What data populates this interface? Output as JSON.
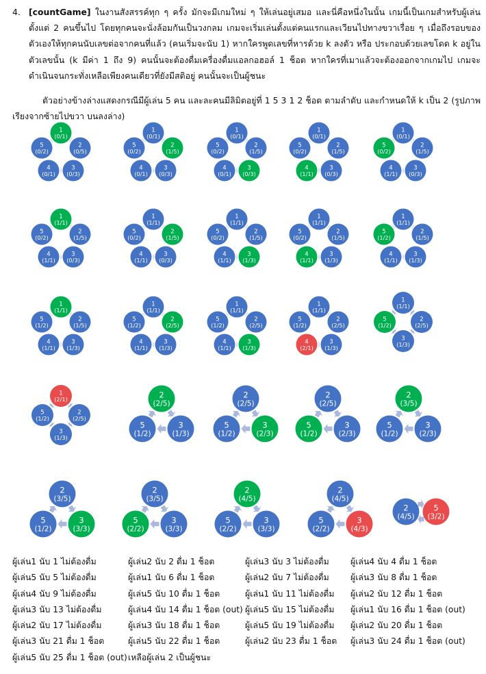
{
  "problem": {
    "number": "4.",
    "keyword": "[countGame]",
    "text": " ในงานสังสรรค์ทุก ๆ ครั้ง มักจะมีเกมใหม่ ๆ ให้เล่นอยู่เสมอ และนี่คือหนึ่งในนั้น เกมนี้เป็นเกมสำหรับผู้เล่นตั้งแต่ 2 คนขึ้นไป โดยทุกคนจะนั่งล้อมกันเป็นวงกลม เกมจะเริ่มเล่นตั้งแต่คนแรกและเวียนไปทางขวาเรื่อย ๆ เมื่อถึงรอบของตัวเองให้ทุกคนนับเลขต่อจากคนที่แล้ว (คนเริ่มจะนับ 1) หากใครพูดเลขที่หารด้วย k ลงตัว หรือ ประกอบด้วยเลขโดด k อยู่ในตัวเลขนั้น (k มีค่า 1 ถึง 9) คนนั้นจะต้องดื่มเครื่องดื่มแอลกอฮอล์ 1 ช็อต หากใครที่เมาแล้วจะต้องออกจากเกมไป เกมจะดำเนินจนกระทั่งเหลือเพียงคนเดียวที่ยังมีสติอยู่ คนนั้นจะเป็นผู้ชนะ",
    "example": "ตัวอย่างข้างล่างแสดงกรณีมีผู้เล่น 5 คน และละคนมีลิมิตอยู่ที่ 1 5 3 1 2 ช็อต ตามลำดับ และกำหนดให้ k เป็น 2 (รูปภาพเรียงจากซ้ายไปขวา บนลงล่าง)"
  },
  "colors": {
    "normal": "#4472c4",
    "active": "#00b050",
    "out": "#e84c4c",
    "arrow": "#aab8de"
  },
  "diagrams": [
    {
      "players": [
        [
          "1",
          "(0/1)",
          "g"
        ],
        [
          "2",
          "(0/5)",
          "b"
        ],
        [
          "3",
          "(0/3)",
          "b"
        ],
        [
          "4",
          "(0/1)",
          "b"
        ],
        [
          "5",
          "(0/2)",
          "b"
        ]
      ]
    },
    {
      "players": [
        [
          "1",
          "(0/1)",
          "b"
        ],
        [
          "2",
          "(1/5)",
          "g"
        ],
        [
          "3",
          "(0/3)",
          "b"
        ],
        [
          "4",
          "(0/1)",
          "b"
        ],
        [
          "5",
          "(0/2)",
          "b"
        ]
      ]
    },
    {
      "players": [
        [
          "1",
          "(0/1)",
          "b"
        ],
        [
          "2",
          "(1/5)",
          "b"
        ],
        [
          "3",
          "(0/3)",
          "g"
        ],
        [
          "4",
          "(0/1)",
          "b"
        ],
        [
          "5",
          "(0/2)",
          "b"
        ]
      ]
    },
    {
      "players": [
        [
          "1",
          "(0/1)",
          "b"
        ],
        [
          "2",
          "(1/5)",
          "b"
        ],
        [
          "3",
          "(0/3)",
          "b"
        ],
        [
          "4",
          "(1/1)",
          "g"
        ],
        [
          "5",
          "(0/2)",
          "b"
        ]
      ]
    },
    {
      "players": [
        [
          "1",
          "(0/1)",
          "b"
        ],
        [
          "2",
          "(1/5)",
          "b"
        ],
        [
          "3",
          "(0/3)",
          "b"
        ],
        [
          "4",
          "(1/1)",
          "b"
        ],
        [
          "5",
          "(0/2)",
          "g"
        ]
      ]
    },
    {
      "players": [
        [
          "1",
          "(1/1)",
          "g"
        ],
        [
          "2",
          "(1/5)",
          "b"
        ],
        [
          "3",
          "(0/3)",
          "b"
        ],
        [
          "4",
          "(1/1)",
          "b"
        ],
        [
          "5",
          "(0/2)",
          "b"
        ]
      ]
    },
    {
      "players": [
        [
          "1",
          "(1/1)",
          "b"
        ],
        [
          "2",
          "(1/5)",
          "g"
        ],
        [
          "3",
          "(0/3)",
          "b"
        ],
        [
          "4",
          "(1/1)",
          "b"
        ],
        [
          "5",
          "(0/2)",
          "b"
        ]
      ]
    },
    {
      "players": [
        [
          "1",
          "(1/1)",
          "b"
        ],
        [
          "2",
          "(1/5)",
          "b"
        ],
        [
          "3",
          "(1/3)",
          "g"
        ],
        [
          "4",
          "(1/1)",
          "b"
        ],
        [
          "5",
          "(0/2)",
          "b"
        ]
      ]
    },
    {
      "players": [
        [
          "1",
          "(1/1)",
          "b"
        ],
        [
          "2",
          "(1/5)",
          "b"
        ],
        [
          "3",
          "(1/3)",
          "b"
        ],
        [
          "4",
          "(1/1)",
          "g"
        ],
        [
          "5",
          "(0/2)",
          "b"
        ]
      ]
    },
    {
      "players": [
        [
          "1",
          "(1/1)",
          "b"
        ],
        [
          "2",
          "(1/5)",
          "b"
        ],
        [
          "3",
          "(1/3)",
          "b"
        ],
        [
          "4",
          "(1/1)",
          "b"
        ],
        [
          "5",
          "(1/2)",
          "g"
        ]
      ]
    },
    {
      "players": [
        [
          "1",
          "(1/1)",
          "g"
        ],
        [
          "2",
          "(1/5)",
          "b"
        ],
        [
          "3",
          "(1/3)",
          "b"
        ],
        [
          "4",
          "(1/1)",
          "b"
        ],
        [
          "5",
          "(1/2)",
          "b"
        ]
      ]
    },
    {
      "players": [
        [
          "1",
          "(1/1)",
          "b"
        ],
        [
          "2",
          "(2/5)",
          "g"
        ],
        [
          "3",
          "(1/3)",
          "b"
        ],
        [
          "4",
          "(1/1)",
          "b"
        ],
        [
          "5",
          "(1/2)",
          "b"
        ]
      ]
    },
    {
      "players": [
        [
          "1",
          "(1/1)",
          "b"
        ],
        [
          "2",
          "(2/5)",
          "b"
        ],
        [
          "3",
          "(1/3)",
          "g"
        ],
        [
          "4",
          "(1/1)",
          "b"
        ],
        [
          "5",
          "(1/2)",
          "b"
        ]
      ]
    },
    {
      "players": [
        [
          "1",
          "(1/1)",
          "b"
        ],
        [
          "2",
          "(2/5)",
          "b"
        ],
        [
          "3",
          "(1/3)",
          "b"
        ],
        [
          "4",
          "(2/1)",
          "r"
        ],
        [
          "5",
          "(1/2)",
          "b"
        ]
      ]
    },
    {
      "players": [
        [
          "1",
          "(1/1)",
          "b"
        ],
        [
          "2",
          "(2/5)",
          "b"
        ],
        [
          "3",
          "(1/3)",
          "b"
        ],
        [
          "5",
          "(1/2)",
          "g"
        ]
      ]
    },
    {
      "players": [
        [
          "1",
          "(2/1)",
          "r"
        ],
        [
          "2",
          "(2/5)",
          "b"
        ],
        [
          "3",
          "(1/3)",
          "b"
        ],
        [
          "5",
          "(1/2)",
          "b"
        ]
      ]
    },
    {
      "players": [
        [
          "2",
          "(2/5)",
          "g"
        ],
        [
          "3",
          "(1/3)",
          "b"
        ],
        [
          "5",
          "(1/2)",
          "b"
        ]
      ]
    },
    {
      "players": [
        [
          "2",
          "(2/5)",
          "b"
        ],
        [
          "3",
          "(2/3)",
          "g"
        ],
        [
          "5",
          "(1/2)",
          "b"
        ]
      ]
    },
    {
      "players": [
        [
          "2",
          "(2/5)",
          "b"
        ],
        [
          "3",
          "(2/3)",
          "b"
        ],
        [
          "5",
          "(1/2)",
          "g"
        ]
      ]
    },
    {
      "players": [
        [
          "2",
          "(3/5)",
          "g"
        ],
        [
          "3",
          "(2/3)",
          "b"
        ],
        [
          "5",
          "(1/2)",
          "b"
        ]
      ]
    },
    {
      "players": [
        [
          "2",
          "(3/5)",
          "b"
        ],
        [
          "3",
          "(3/3)",
          "g"
        ],
        [
          "5",
          "(1/2)",
          "b"
        ]
      ]
    },
    {
      "players": [
        [
          "2",
          "(3/5)",
          "b"
        ],
        [
          "3",
          "(3/3)",
          "b"
        ],
        [
          "5",
          "(2/2)",
          "g"
        ]
      ]
    },
    {
      "players": [
        [
          "2",
          "(4/5)",
          "g"
        ],
        [
          "3",
          "(3/3)",
          "b"
        ],
        [
          "5",
          "(2/2)",
          "b"
        ]
      ]
    },
    {
      "players": [
        [
          "2",
          "(4/5)",
          "b"
        ],
        [
          "3",
          "(4/3)",
          "r"
        ],
        [
          "5",
          "(2/2)",
          "b"
        ]
      ]
    },
    {
      "players": [
        [
          "2",
          "(4/5)",
          "b"
        ],
        [
          "5",
          "(3/2)",
          "r"
        ]
      ]
    }
  ],
  "log": [
    [
      "ผู้เล่น1 นับ 1 ไม่ต้องดื่ม",
      "ผู้เล่น5 นับ 5 ไม่ต้องดื่ม",
      "ผู้เล่น4 นับ 9 ไม่ต้องดื่ม",
      "ผู้เล่น3 นับ 13 ไม่ต้องดื่ม",
      "ผู้เล่น2 นับ 17 ไม่ต้องดื่ม",
      "ผู้เล่น3 นับ 21 ดื่ม 1 ช็อต",
      "ผู้เล่น5 นับ 25 ดื่ม 1 ช็อต (out)"
    ],
    [
      "ผู้เล่น2 นับ 2 ดื่ม 1 ช็อต",
      "ผู้เล่น1 นับ 6 ดื่ม 1 ช็อต",
      "ผู้เล่น5 นับ 10 ดื่ม 1 ช็อต",
      "ผู้เล่น4 นับ 14 ดื่ม 1 ช็อต (out)",
      "ผู้เล่น3 นับ 18 ดื่ม 1 ช็อต",
      "ผู้เล่น5 นับ 22 ดื่ม 1 ช็อต",
      "เหลือผู้เล่น 2 เป็นผู้ชนะ"
    ],
    [
      "ผู้เล่น3 นับ 3 ไม่ต้องดื่ม",
      "ผู้เล่น2 นับ 7 ไม่ต้องดื่ม",
      "ผู้เล่น1 นับ 11 ไม่ต้องดื่ม",
      "ผู้เล่น5 นับ 15 ไม่ต้องดื่ม",
      "ผู้เล่น5 นับ 19 ไม่ต้องดื่ม",
      "ผู้เล่น2 นับ 23 ดื่ม 1 ช็อต"
    ],
    [
      "ผู้เล่น4 นับ 4 ดื่ม 1 ช็อต",
      "ผู้เล่น3 นับ 8 ดื่ม 1 ช็อต",
      "ผู้เล่น2 นับ 12 ดื่ม 1 ช็อต",
      "ผู้เล่น1 นับ 16 ดื่ม 1 ช็อต (out)",
      "ผู้เล่น2 นับ 20 ดื่ม 1 ช็อต",
      "ผู้เล่น3 นับ 24 ดื่ม 1 ช็อต (out)"
    ]
  ]
}
